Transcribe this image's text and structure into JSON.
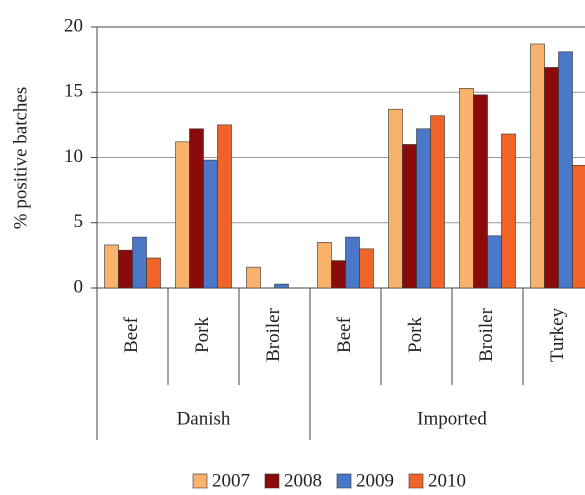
{
  "chart_data": {
    "type": "bar",
    "y_label": "% positive batches",
    "groups": [
      {
        "name": "Danish",
        "categories": [
          "Beef",
          "Pork",
          "Broiler"
        ]
      },
      {
        "name": "Imported",
        "categories": [
          "Beef",
          "Pork",
          "Broiler",
          "Turkey"
        ]
      }
    ],
    "series": [
      {
        "name": "2007",
        "color": "#f9b26b",
        "values": [
          3.3,
          11.2,
          1.6,
          3.5,
          13.7,
          15.3,
          18.7
        ]
      },
      {
        "name": "2008",
        "color": "#8b0a0a",
        "values": [
          2.9,
          12.2,
          0,
          2.1,
          11.0,
          14.8,
          16.9
        ]
      },
      {
        "name": "2009",
        "color": "#4a78c8",
        "values": [
          3.9,
          9.8,
          0.3,
          3.9,
          12.2,
          4.0,
          18.1
        ]
      },
      {
        "name": "2010",
        "color": "#f0642a",
        "values": [
          2.3,
          12.5,
          0,
          3.0,
          13.2,
          11.8,
          9.4
        ]
      }
    ],
    "ylim": [
      0,
      20
    ],
    "yticks": [
      0,
      5,
      10,
      15,
      20
    ],
    "grid": true
  }
}
